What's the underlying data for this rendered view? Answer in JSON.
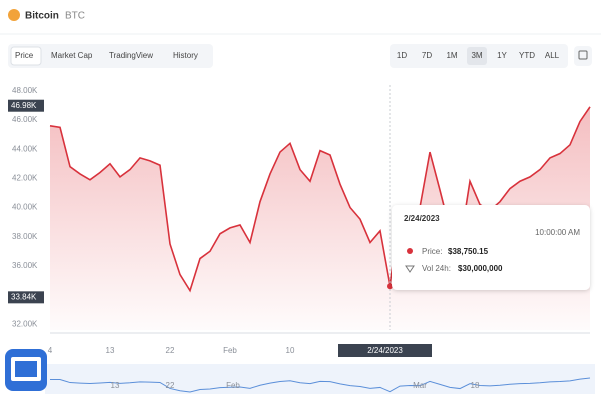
{
  "header": {
    "title": "Bitcoin",
    "symbol": "BTC"
  },
  "tabs": [
    "Price",
    "Market Cap",
    "TradingView",
    "History"
  ],
  "ranges": [
    "1D",
    "7D",
    "1M",
    "3M",
    "1Y",
    "YTD",
    "ALL"
  ],
  "chart_data": {
    "type": "line",
    "color": "#d8323c",
    "grid": false,
    "values": [
      45.6,
      45.5,
      42.8,
      42.3,
      41.9,
      42.4,
      43.0,
      42.1,
      42.6,
      43.4,
      43.2,
      42.9,
      37.5,
      35.4,
      34.3,
      36.5,
      37.0,
      38.2,
      38.6,
      38.8,
      37.6,
      40.4,
      42.3,
      43.8,
      44.4,
      42.6,
      41.8,
      43.9,
      43.6,
      41.6,
      40.0,
      39.2,
      37.6,
      38.4,
      34.6,
      39.6,
      40.1,
      40.0,
      43.8,
      41.2,
      38.5,
      37.4,
      41.8,
      40.2,
      39.8,
      40.4,
      41.3,
      41.8,
      42.1,
      42.6,
      43.4,
      43.7,
      44.3,
      45.9,
      46.9
    ],
    "ylim": [
      31.6,
      48.4
    ],
    "yticks": [
      {
        "value": 48,
        "label": "48.00K"
      },
      {
        "value": 46,
        "label": "46.00K"
      },
      {
        "value": 44,
        "label": "44.00K"
      },
      {
        "value": 42,
        "label": "42.00K"
      },
      {
        "value": 40,
        "label": "40.00K"
      },
      {
        "value": 38,
        "label": "38.00K"
      },
      {
        "value": 36,
        "label": "36.00K"
      },
      {
        "value": 32,
        "label": "32.00K"
      }
    ],
    "price_labels": [
      {
        "value": 46.98,
        "label": "46.98K"
      },
      {
        "value": 33.84,
        "label": "33.84K"
      }
    ],
    "xticks": [
      {
        "value": 0,
        "label": "4"
      },
      {
        "value": 6,
        "label": "13"
      },
      {
        "value": 12,
        "label": "22"
      },
      {
        "value": 18,
        "label": "Feb"
      },
      {
        "value": 24,
        "label": "10"
      }
    ],
    "navigator_labels": [
      "13",
      "22",
      "Feb",
      "Mar",
      "18"
    ]
  },
  "tooltip": {
    "date": "2/24/2023",
    "time": "10:00:00 AM",
    "price_label": "Price:",
    "price": "$38,750.15",
    "volume_label": "Vol 24h:",
    "volume": "$30,000,000"
  }
}
